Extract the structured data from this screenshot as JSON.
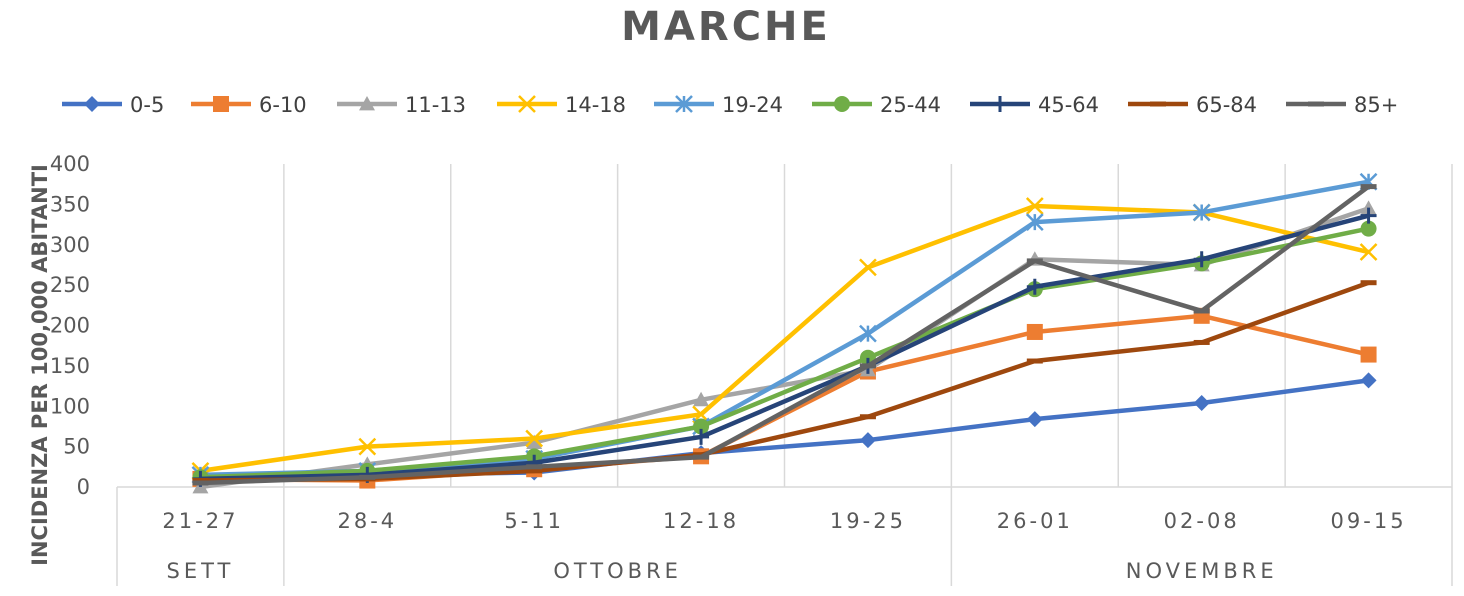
{
  "chart_data": {
    "type": "line",
    "title": "MARCHE",
    "ylabel": "INCIDENZA PER 100,000 ABITANTI",
    "xlabel": "",
    "ylim": [
      0,
      400
    ],
    "yticks": [
      0,
      50,
      100,
      150,
      200,
      250,
      300,
      350,
      400
    ],
    "categories": [
      "21-27",
      "28-4",
      "5-11",
      "12-18",
      "19-25",
      "26-01",
      "02-08",
      "09-15"
    ],
    "category_groups": [
      {
        "label": "SETT",
        "span": 1
      },
      {
        "label": "OTTOBRE",
        "span": 4
      },
      {
        "label": "NOVEMBRE",
        "span": 3
      }
    ],
    "legend_position": "top",
    "grid": "vertical",
    "series": [
      {
        "name": "0-5",
        "color": "#4472C4",
        "marker": "diamond",
        "values": [
          10,
          15,
          18,
          42,
          58,
          84,
          104,
          132
        ]
      },
      {
        "name": "6-10",
        "color": "#ED7D31",
        "marker": "square",
        "values": [
          10,
          8,
          22,
          38,
          143,
          192,
          212,
          164
        ]
      },
      {
        "name": "11-13",
        "color": "#A5A5A5",
        "marker": "triangle",
        "values": [
          0,
          28,
          55,
          108,
          145,
          282,
          275,
          345
        ]
      },
      {
        "name": "14-18",
        "color": "#FFC000",
        "marker": "x",
        "values": [
          20,
          50,
          60,
          90,
          272,
          348,
          340,
          291
        ]
      },
      {
        "name": "19-24",
        "color": "#5B9BD5",
        "marker": "star",
        "values": [
          15,
          20,
          35,
          75,
          190,
          328,
          340,
          378
        ]
      },
      {
        "name": "25-44",
        "color": "#70AD47",
        "marker": "circle",
        "values": [
          12,
          20,
          38,
          75,
          160,
          245,
          277,
          320
        ]
      },
      {
        "name": "45-64",
        "color": "#264478",
        "marker": "plus",
        "values": [
          10,
          15,
          30,
          62,
          150,
          248,
          282,
          336
        ]
      },
      {
        "name": "65-84",
        "color": "#9E480E",
        "marker": "dash",
        "values": [
          8,
          10,
          20,
          40,
          87,
          156,
          179,
          253
        ]
      },
      {
        "name": "85+",
        "color": "#636363",
        "marker": "dash",
        "values": [
          5,
          12,
          25,
          37,
          150,
          280,
          218,
          372
        ]
      }
    ]
  }
}
